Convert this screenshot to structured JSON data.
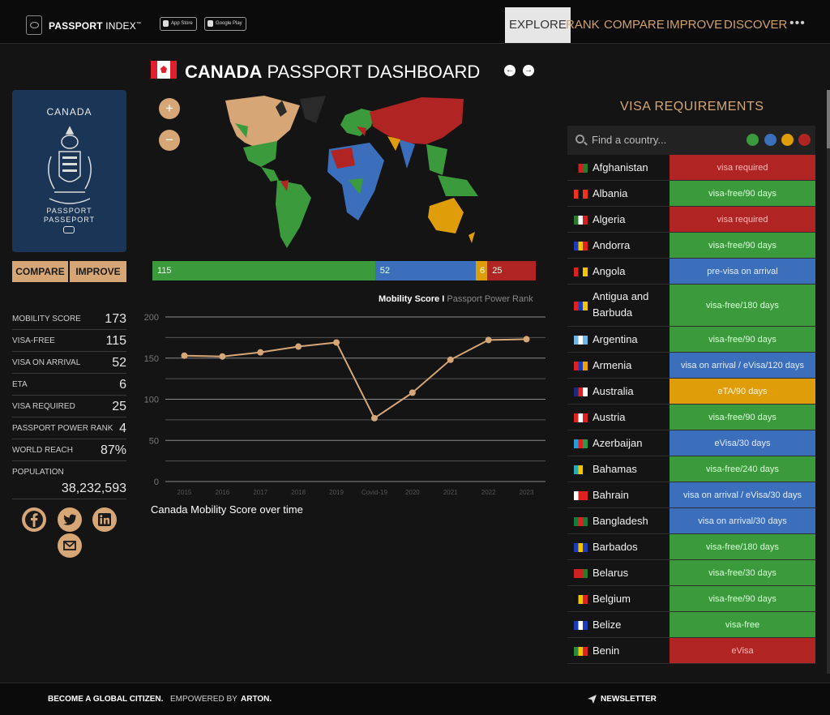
{
  "header": {
    "brand_strong": "PASSPORT",
    "brand_rest": " INDEX",
    "brand_tm": "™",
    "app_store": "App Store",
    "google_play": "Google Play",
    "nav": [
      "EXPLORE",
      "RANK",
      "COMPARE",
      "IMPROVE",
      "DISCOVER"
    ],
    "more": "•••"
  },
  "passport": {
    "country": "CANADA",
    "line1": "PASSPORT",
    "line2": "PASSEPORT"
  },
  "actions": {
    "compare": "COMPARE",
    "improve": "IMPROVE"
  },
  "stats": [
    {
      "label": "MOBILITY SCORE",
      "value": "173"
    },
    {
      "label": "VISA-FREE",
      "value": "115"
    },
    {
      "label": "VISA ON ARRIVAL",
      "value": "52"
    },
    {
      "label": "ETA",
      "value": "6"
    },
    {
      "label": "VISA REQUIRED",
      "value": "25"
    },
    {
      "label": "PASSPORT POWER RANK",
      "value": "4"
    },
    {
      "label": "WORLD REACH",
      "value": "87%"
    },
    {
      "label": "POPULATION",
      "value": "38,232,593"
    }
  ],
  "social_icons": [
    "facebook-icon",
    "twitter-icon",
    "linkedin-icon",
    "mail-icon"
  ],
  "dashboard": {
    "title_strong": "CANADA",
    "title_rest": " PASSPORT DASHBOARD",
    "prev": "←",
    "next": "→",
    "zoom_in": "+",
    "zoom_out": "−"
  },
  "mobility_bar": [
    {
      "value": 115,
      "label": "115",
      "color": "#3b9a3c"
    },
    {
      "value": 52,
      "label": "52",
      "color": "#3b6fbc"
    },
    {
      "value": 6,
      "label": "6",
      "color": "#e09d0a"
    },
    {
      "value": 25,
      "label": "25",
      "color": "#b02424"
    }
  ],
  "chart_tabs": {
    "active": "Mobility Score",
    "sep": " I ",
    "inactive": "Passport Power Rank"
  },
  "chart_caption": "Canada Mobility Score over time",
  "chart_data": {
    "type": "line",
    "title": "",
    "xlabel": "",
    "ylabel": "",
    "categories": [
      "2015",
      "2016",
      "2017",
      "2018",
      "2019",
      "Covid-19",
      "2020",
      "2021",
      "2022",
      "2023"
    ],
    "values": [
      153,
      152,
      157,
      164,
      169,
      77,
      108,
      148,
      172,
      173
    ],
    "ylim": [
      0,
      200
    ],
    "yticks": [
      0,
      50,
      100,
      150,
      200
    ],
    "grid": true,
    "line_color": "#d6a676"
  },
  "visa": {
    "heading": "VISA REQUIREMENTS",
    "search_placeholder": "Find a country...",
    "filters": [
      "#3b9a3c",
      "#3b6fbc",
      "#e09d0a",
      "#b02424"
    ],
    "rows": [
      {
        "country": "Afghanistan",
        "req": "visa required",
        "type": "red"
      },
      {
        "country": "Albania",
        "req": "visa-free/90 days",
        "type": "green"
      },
      {
        "country": "Algeria",
        "req": "visa required",
        "type": "red"
      },
      {
        "country": "Andorra",
        "req": "visa-free/90 days",
        "type": "green"
      },
      {
        "country": "Angola",
        "req": "pre-visa on arrival",
        "type": "blue"
      },
      {
        "country": "Antigua and Barbuda",
        "req": "visa-free/180 days",
        "type": "green"
      },
      {
        "country": "Argentina",
        "req": "visa-free/90 days",
        "type": "green"
      },
      {
        "country": "Armenia",
        "req": "visa on arrival / eVisa/120 days",
        "type": "blue"
      },
      {
        "country": "Australia",
        "req": "eTA/90 days",
        "type": "orange"
      },
      {
        "country": "Austria",
        "req": "visa-free/90 days",
        "type": "green"
      },
      {
        "country": "Azerbaijan",
        "req": "eVisa/30 days",
        "type": "blue"
      },
      {
        "country": "Bahamas",
        "req": "visa-free/240 days",
        "type": "green"
      },
      {
        "country": "Bahrain",
        "req": "visa on arrival / eVisa/30 days",
        "type": "blue"
      },
      {
        "country": "Bangladesh",
        "req": "visa on arrival/30 days",
        "type": "blue"
      },
      {
        "country": "Barbados",
        "req": "visa-free/180 days",
        "type": "green"
      },
      {
        "country": "Belarus",
        "req": "visa-free/30 days",
        "type": "green"
      },
      {
        "country": "Belgium",
        "req": "visa-free/90 days",
        "type": "green"
      },
      {
        "country": "Belize",
        "req": "visa-free",
        "type": "green"
      },
      {
        "country": "Benin",
        "req": "eVisa",
        "type": "red"
      }
    ]
  },
  "colors": {
    "green": "#3b9a3c",
    "blue": "#3b6fbc",
    "orange": "#e09d0a",
    "red": "#b02424",
    "accent": "#d6a676"
  },
  "footer": {
    "global": "BECOME A GLOBAL CITIZEN.",
    "empowered": "EMPOWERED BY",
    "arton": "ARTON.",
    "newsletter": "NEWSLETTER"
  }
}
